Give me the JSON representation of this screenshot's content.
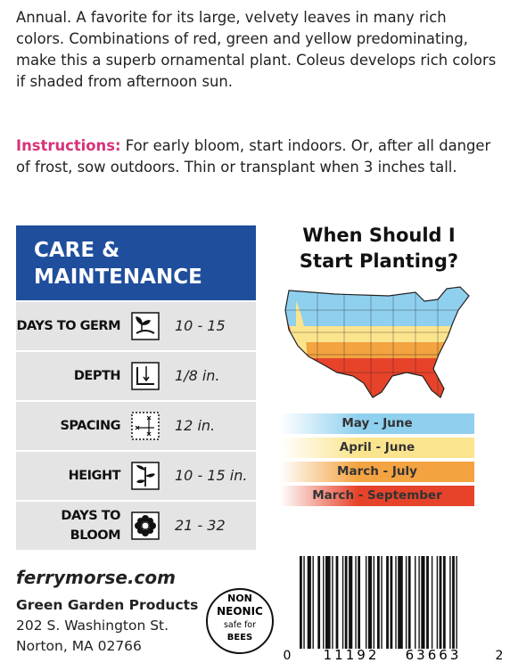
{
  "description": "Annual. A favorite for its large, velvety leaves in many rich colors. Combinations of red, green and yellow predominating, make this a superb ornamental plant. Coleus develops rich colors if shaded from afternoon sun.",
  "instructions": {
    "label": "Instructions:",
    "text": "For early bloom, start indoors. Or, after all danger of frost, sow outdoors. Thin or transplant when 3 inches tall."
  },
  "care": {
    "title": [
      "CARE &",
      "MAINTENANCE"
    ],
    "rows": [
      {
        "label": [
          "DAYS TO GERM"
        ],
        "value": "10 - 15"
      },
      {
        "label": [
          "DEPTH"
        ],
        "value": "1/8 in."
      },
      {
        "label": [
          "SPACING"
        ],
        "value": "12 in."
      },
      {
        "label": [
          "HEIGHT"
        ],
        "value": "10 - 15 in."
      },
      {
        "label": [
          "DAYS TO",
          "BLOOM"
        ],
        "value": "21 - 32"
      }
    ]
  },
  "planting": {
    "title": [
      "When Should I",
      "Start Planting?"
    ],
    "zones": [
      "May - June",
      "April - June",
      "March - July",
      "March - September"
    ]
  },
  "footer": {
    "website": "ferrymorse.com",
    "company": "Green Garden Products",
    "address": [
      "202 S. Washington St.",
      "Norton, MA 02766"
    ],
    "badge": [
      "NON",
      "NEONIC",
      "safe for",
      "BEES"
    ],
    "barcode": [
      "0",
      "11192",
      "63663",
      "2"
    ]
  }
}
